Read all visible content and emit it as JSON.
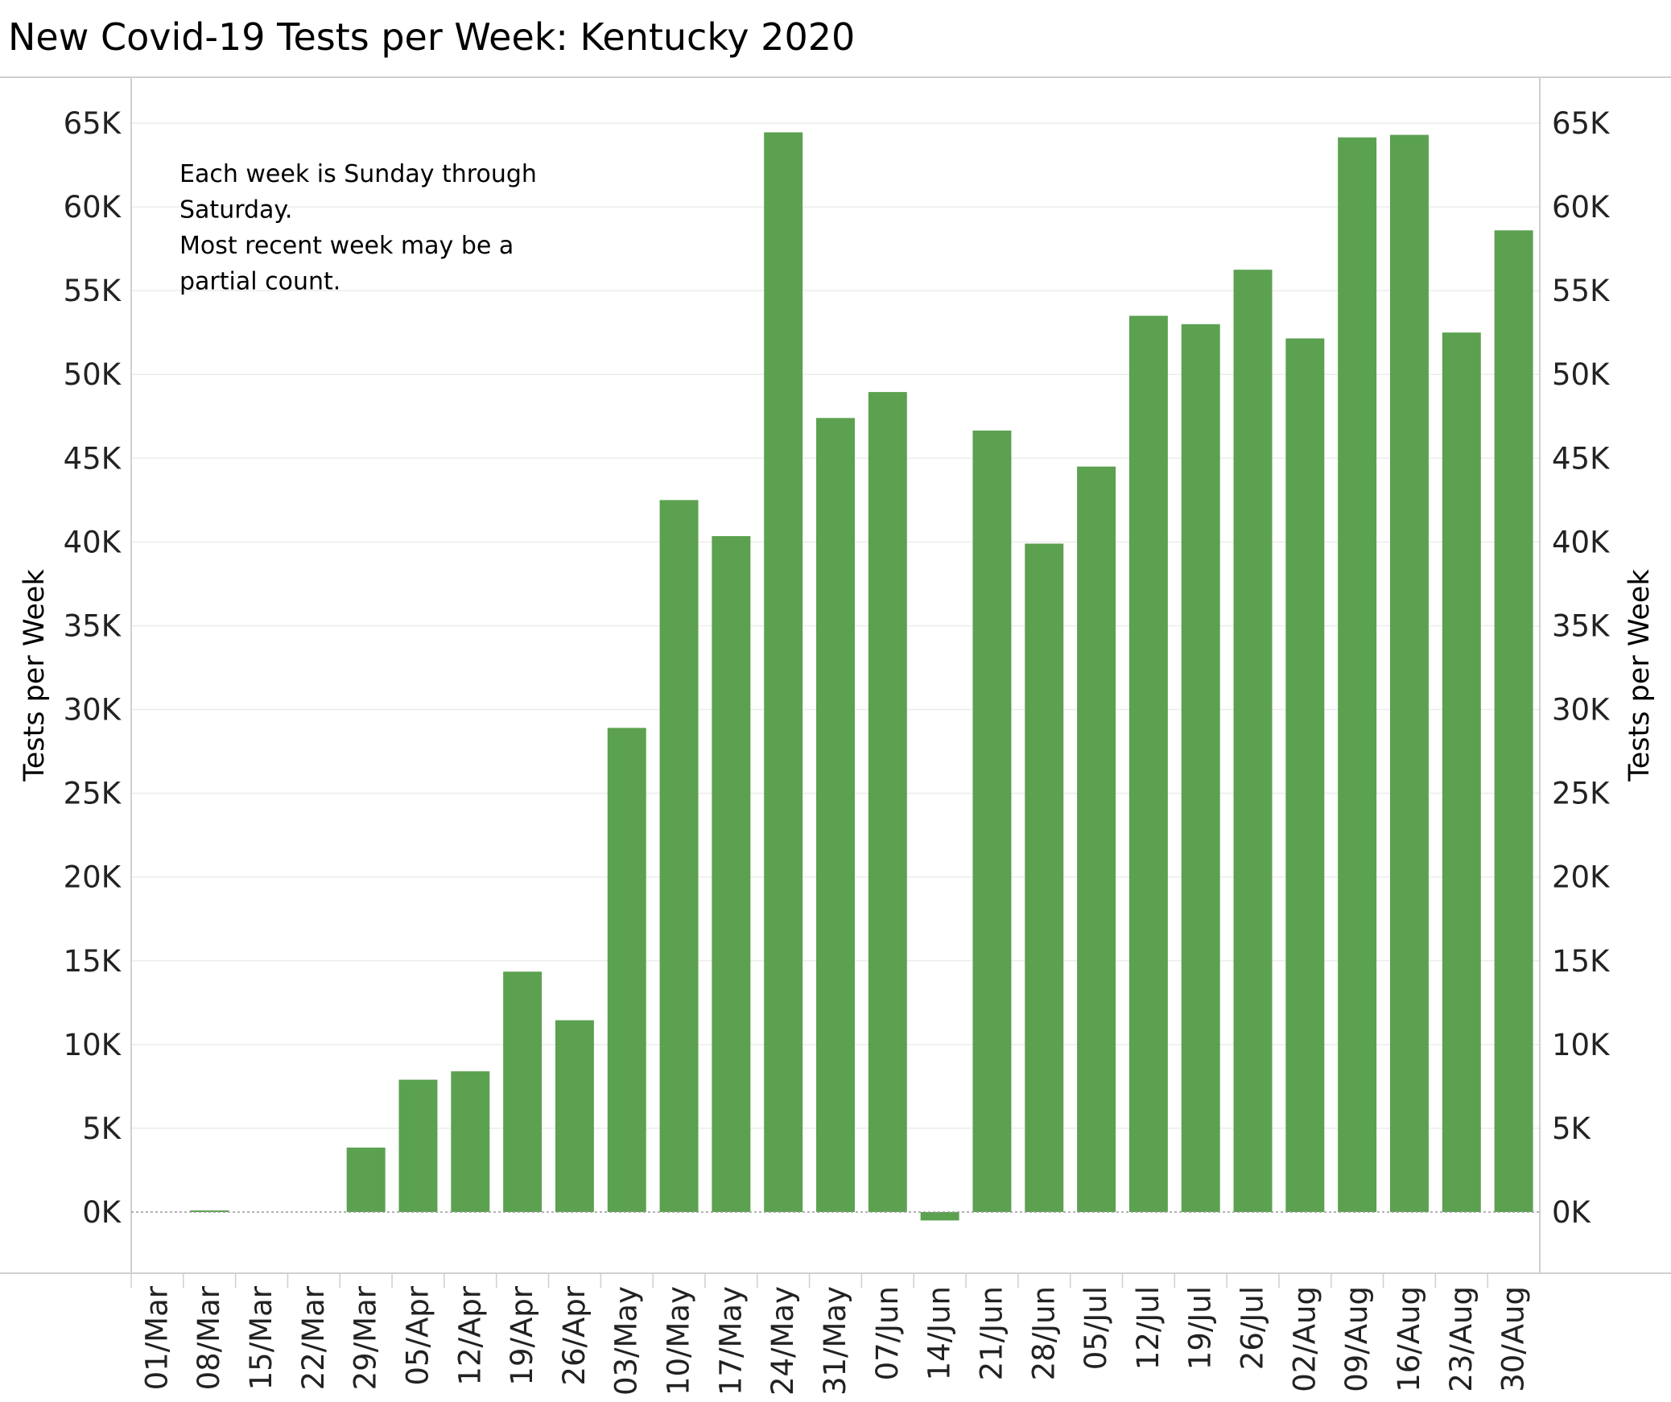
{
  "chart_data": {
    "type": "bar",
    "title": "New Covid-19 Tests per Week:  Kentucky 2020",
    "ylabel": "Tests per Week",
    "ylabel_right": "Tests per Week",
    "xlabel": "",
    "ylim": [
      -3800,
      65000
    ],
    "yticks": [
      0,
      5000,
      10000,
      15000,
      20000,
      25000,
      30000,
      35000,
      40000,
      45000,
      50000,
      55000,
      60000,
      65000
    ],
    "ytick_labels": [
      "0K",
      "5K",
      "10K",
      "15K",
      "20K",
      "25K",
      "30K",
      "35K",
      "40K",
      "45K",
      "50K",
      "55K",
      "60K",
      "65K"
    ],
    "grid": true,
    "bar_color": "#5ba150",
    "categories": [
      "01/Mar",
      "08/Mar",
      "15/Mar",
      "22/Mar",
      "29/Mar",
      "05/Apr",
      "12/Apr",
      "19/Apr",
      "26/Apr",
      "03/May",
      "10/May",
      "17/May",
      "24/May",
      "31/May",
      "07/Jun",
      "14/Jun",
      "21/Jun",
      "28/Jun",
      "05/Jul",
      "12/Jul",
      "19/Jul",
      "26/Jul",
      "02/Aug",
      "09/Aug",
      "16/Aug",
      "23/Aug",
      "30/Aug"
    ],
    "values": [
      0,
      100,
      0,
      0,
      3850,
      7900,
      8400,
      14350,
      11450,
      28900,
      42500,
      40350,
      64450,
      47400,
      48950,
      -500,
      46650,
      39900,
      44500,
      53500,
      53000,
      56250,
      52150,
      64150,
      64300,
      52500,
      58600
    ],
    "annotation": [
      "Each week is Sunday through",
      "Saturday.",
      "Most recent week may be a",
      "partial count."
    ]
  }
}
